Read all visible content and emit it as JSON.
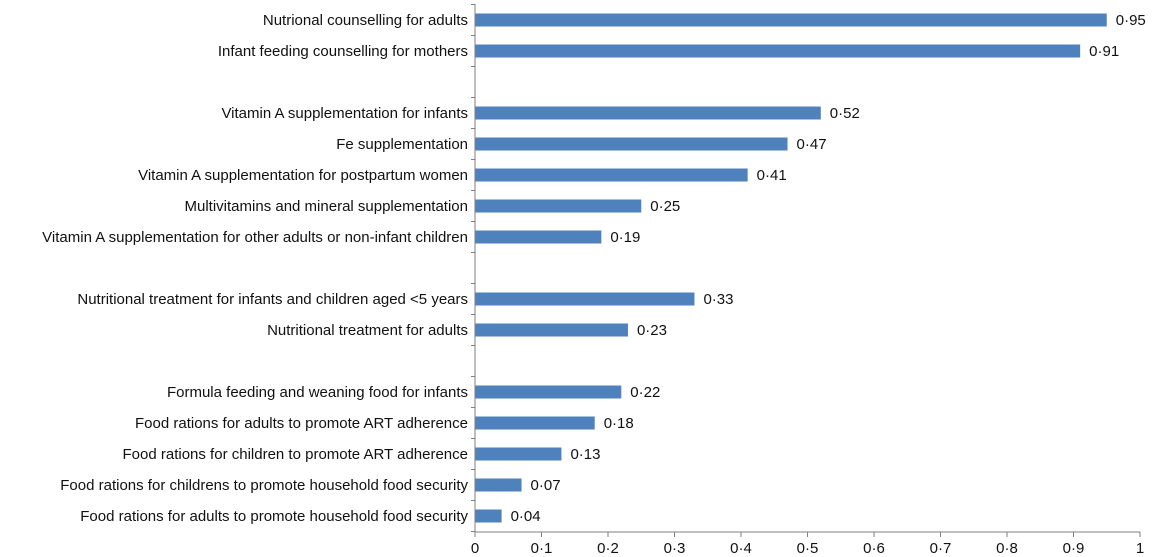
{
  "chart_data": {
    "type": "bar",
    "orientation": "horizontal",
    "bar_color": "#4f81bd",
    "axis_color": "#7f7f7f",
    "xlim": [
      0,
      1
    ],
    "grid": false,
    "rows": [
      {
        "label": "Nutrional counselling for adults",
        "value": 0.95,
        "value_label": "0·95"
      },
      {
        "label": "Infant feeding counselling for mothers",
        "value": 0.91,
        "value_label": "0·91"
      },
      {
        "label": "",
        "value": null,
        "value_label": ""
      },
      {
        "label": "Vitamin A supplementation for infants",
        "value": 0.52,
        "value_label": "0·52"
      },
      {
        "label": "Fe supplementation",
        "value": 0.47,
        "value_label": "0·47"
      },
      {
        "label": "Vitamin A supplementation for postpartum women",
        "value": 0.41,
        "value_label": "0·41"
      },
      {
        "label": "Multivitamins and mineral supplementation",
        "value": 0.25,
        "value_label": "0·25"
      },
      {
        "label": "Vitamin A supplementation for other adults or non-infant children",
        "value": 0.19,
        "value_label": "0·19"
      },
      {
        "label": "",
        "value": null,
        "value_label": ""
      },
      {
        "label": "Nutritional treatment for infants and children aged <5 years",
        "value": 0.33,
        "value_label": "0·33"
      },
      {
        "label": "Nutritional treatment for adults",
        "value": 0.23,
        "value_label": "0·23"
      },
      {
        "label": "",
        "value": null,
        "value_label": ""
      },
      {
        "label": "Formula feeding and weaning food for infants",
        "value": 0.22,
        "value_label": "0·22"
      },
      {
        "label": "Food rations for adults to promote ART adherence",
        "value": 0.18,
        "value_label": "0·18"
      },
      {
        "label": "Food rations for children to promote ART adherence",
        "value": 0.13,
        "value_label": "0·13"
      },
      {
        "label": "Food rations for childrens to promote household food security",
        "value": 0.07,
        "value_label": "0·07"
      },
      {
        "label": "Food rations for adults to promote household food security",
        "value": 0.04,
        "value_label": "0·04"
      }
    ],
    "x_ticks": [
      {
        "value": 0,
        "label": "0"
      },
      {
        "value": 0.1,
        "label": "0·1"
      },
      {
        "value": 0.2,
        "label": "0·2"
      },
      {
        "value": 0.3,
        "label": "0·3"
      },
      {
        "value": 0.4,
        "label": "0·4"
      },
      {
        "value": 0.5,
        "label": "0·5"
      },
      {
        "value": 0.6,
        "label": "0·6"
      },
      {
        "value": 0.7,
        "label": "0·7"
      },
      {
        "value": 0.8,
        "label": "0·8"
      },
      {
        "value": 0.9,
        "label": "0·9"
      },
      {
        "value": 1,
        "label": "1"
      }
    ]
  }
}
